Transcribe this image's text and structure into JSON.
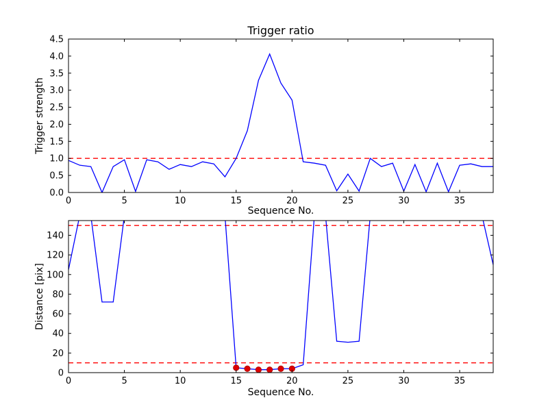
{
  "style": {
    "background": "#ffffff",
    "line_color": "#0000ff",
    "threshold_color": "#ff0000",
    "marker_color": "#dd0000",
    "marker_edge_color": "#aa0000",
    "axis_color": "#000000",
    "text_color": "#000000"
  },
  "chart_data": [
    {
      "type": "line",
      "title": "Trigger ratio",
      "xlabel": "Sequence No.",
      "ylabel": "Trigger strength",
      "xlim": [
        0,
        38
      ],
      "ylim": [
        0,
        4.5
      ],
      "grid": false,
      "legend": null,
      "xticks": [
        0,
        5,
        10,
        15,
        20,
        25,
        30,
        35
      ],
      "xtick_labels": [
        "0",
        "5",
        "10",
        "15",
        "20",
        "25",
        "30",
        "35"
      ],
      "yticks": [
        0,
        0.5,
        1.0,
        1.5,
        2.0,
        2.5,
        3.0,
        3.5,
        4.0,
        4.5
      ],
      "ytick_labels": [
        "0.0",
        "0.5",
        "1.0",
        "1.5",
        "2.0",
        "2.5",
        "3.0",
        "3.5",
        "4.0",
        "4.5"
      ],
      "x": [
        0,
        1,
        2,
        3,
        4,
        5,
        6,
        7,
        8,
        9,
        10,
        11,
        12,
        13,
        14,
        15,
        16,
        17,
        18,
        19,
        20,
        21,
        22,
        23,
        24,
        25,
        26,
        27,
        28,
        29,
        30,
        31,
        32,
        33,
        34,
        35,
        36,
        37,
        38
      ],
      "y": [
        0.94,
        0.8,
        0.76,
        0.0,
        0.76,
        0.96,
        0.03,
        0.96,
        0.9,
        0.68,
        0.82,
        0.76,
        0.9,
        0.84,
        0.46,
        1.0,
        1.81,
        3.29,
        4.06,
        3.21,
        2.71,
        0.9,
        0.86,
        0.8,
        0.05,
        0.54,
        0.04,
        1.0,
        0.76,
        0.86,
        0.04,
        0.82,
        0.02,
        0.86,
        0.02,
        0.8,
        0.84,
        0.76,
        0.76
      ],
      "thresholds": [
        1.0
      ]
    },
    {
      "type": "line",
      "title": "",
      "xlabel": "Sequence No.",
      "ylabel": "Distance [pix]",
      "xlim": [
        0,
        38
      ],
      "ylim": [
        0,
        155
      ],
      "grid": false,
      "legend": null,
      "xticks": [
        0,
        5,
        10,
        15,
        20,
        25,
        30,
        35
      ],
      "xtick_labels": [
        "0",
        "5",
        "10",
        "15",
        "20",
        "25",
        "30",
        "35"
      ],
      "yticks": [
        0,
        20,
        40,
        60,
        80,
        100,
        120,
        140
      ],
      "ytick_labels": [
        "0",
        "20",
        "40",
        "60",
        "80",
        "100",
        "120",
        "140"
      ],
      "x": [
        0,
        1,
        2,
        3,
        4,
        5,
        6,
        7,
        8,
        9,
        10,
        11,
        12,
        13,
        14,
        15,
        16,
        17,
        18,
        19,
        20,
        21,
        22,
        23,
        24,
        25,
        26,
        27,
        28,
        29,
        30,
        31,
        32,
        33,
        34,
        35,
        36,
        37,
        38
      ],
      "y": [
        105,
        160,
        160,
        72,
        72,
        160,
        160,
        160,
        160,
        160,
        160,
        160,
        160,
        160,
        160,
        5,
        4,
        3,
        3,
        4,
        4,
        8,
        160,
        160,
        32,
        31,
        32,
        160,
        160,
        160,
        160,
        160,
        160,
        160,
        160,
        160,
        160,
        160,
        110
      ],
      "thresholds": [
        150,
        10
      ],
      "markers": {
        "x": [
          15,
          16,
          17,
          18,
          19,
          20
        ],
        "y": [
          5,
          4,
          3,
          3,
          4,
          4
        ]
      }
    }
  ]
}
